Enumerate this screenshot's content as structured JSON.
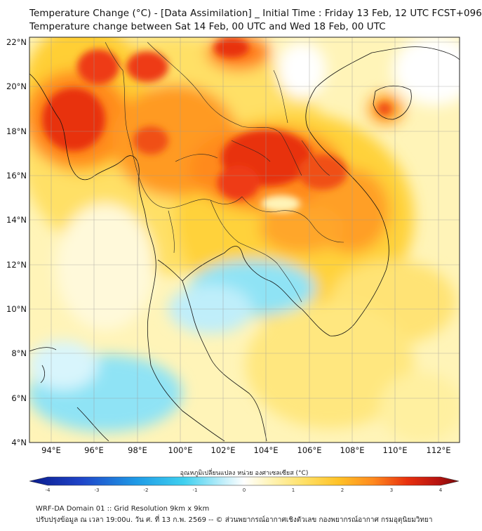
{
  "title": {
    "line1": "Temperature Change (°C) - [Data Assimilation] _ Initial Time : Friday 13 Feb, 12 UTC FCST+096",
    "line2": "Temperature change between Sat 14 Feb, 00 UTC and Wed 18 Feb, 00 UTC"
  },
  "map": {
    "lat_labels": [
      "22°N",
      "20°N",
      "18°N",
      "16°N",
      "14°N",
      "12°N",
      "10°N",
      "8°N",
      "6°N",
      "4°N"
    ],
    "lon_labels": [
      "94°E",
      "96°E",
      "98°E",
      "100°E",
      "102°E",
      "104°E",
      "106°E",
      "108°E",
      "110°E",
      "112°E"
    ],
    "lat_range": [
      4,
      22.2
    ],
    "lon_range": [
      93,
      113
    ]
  },
  "colorbar": {
    "label": "อุณหภูมิเปลี่ยนแปลง หน่วย องศาเซลเซียส (°C)",
    "ticks": [
      "-4",
      "-3",
      "-2",
      "-1",
      "0",
      "1",
      "2",
      "3",
      "4"
    ],
    "range": [
      -4,
      4
    ],
    "colors": {
      "min": "#0a1b8c",
      "cold": "#1f66d6",
      "cool": "#3fd0ef",
      "light": "#bfeefa",
      "neutral": "#ffffff",
      "pale": "#fff4b8",
      "warm": "#ffd23a",
      "hot": "#ff7f1e",
      "red": "#e81e0e",
      "max": "#7a0a0a"
    }
  },
  "footer": {
    "line1": "WRF-DA Domain 01 :: Grid Resolution 9km x 9km",
    "line2": "ปรับปรุงข้อมูล ณ เวลา 19:00u. วัน ศ. ที่ 13 ก.พ. 2569 -- © ส่วนพยากรณ์อากาศเชิงตัวเลข กองพยากรณ์อากาศ กรมอุตุนิยมวิทยา"
  }
}
